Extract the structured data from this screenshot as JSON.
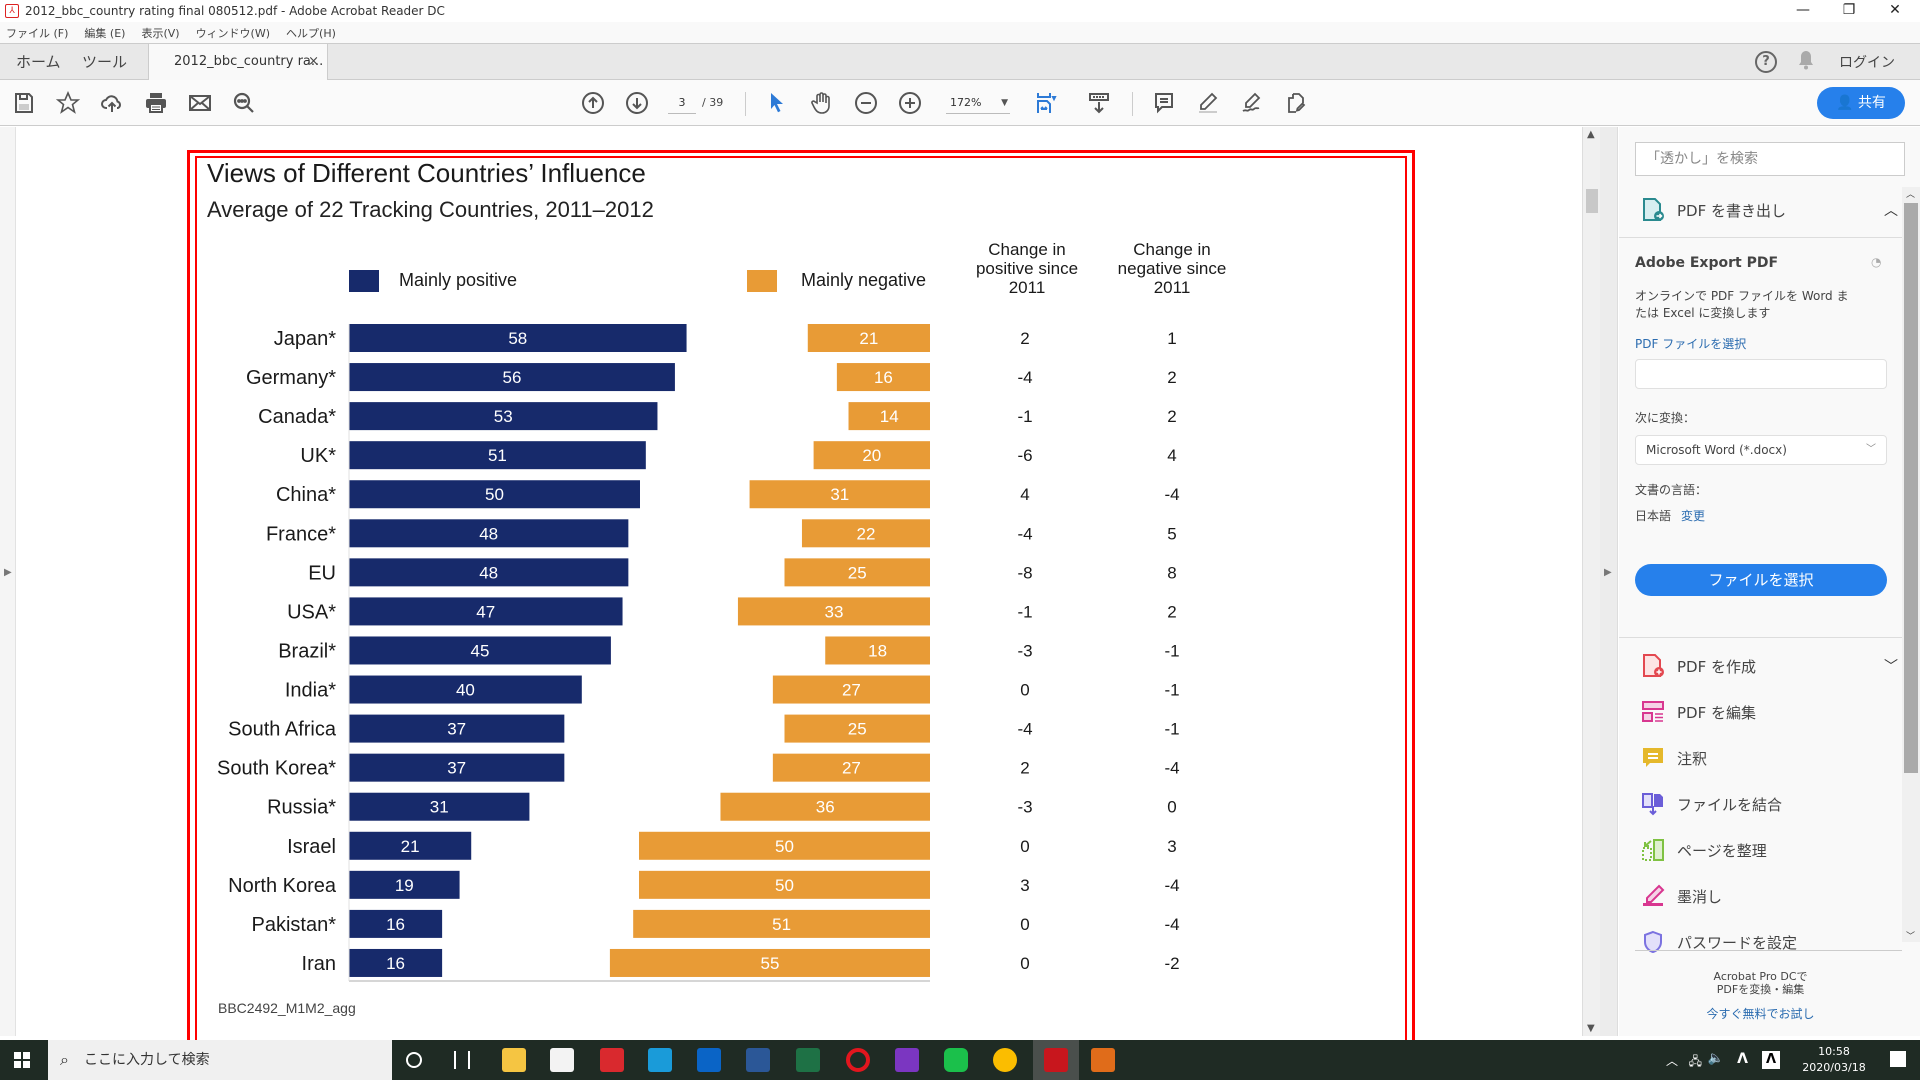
{
  "window": {
    "title": "2012_bbc_country rating final 080512.pdf - Adobe Acrobat Reader DC",
    "minimize": "—",
    "restore": "❐",
    "close": "✕"
  },
  "menu": [
    "ファイル (F)",
    "編集 (E)",
    "表示(V)",
    "ウィンドウ(W)",
    "ヘルプ(H)"
  ],
  "tabs": {
    "home": "ホーム",
    "tools": "ツール",
    "document": "2012_bbc_country ra...",
    "close": "×",
    "help": "?",
    "login": "ログイン"
  },
  "toolbar": {
    "icons": [
      "save-icon",
      "bookmark-star-icon",
      "cloud-upload-icon",
      "print-icon",
      "email-icon",
      "search-zoom-icon"
    ],
    "page_current": "3",
    "page_total": "/ 39",
    "zoom_level": "172%",
    "share_label": "共有"
  },
  "document": {
    "title": "Views of Different Countries’ Influence",
    "subtitle": "Average of 22 Tracking Countries, 2011–2012",
    "legend_positive": "Mainly positive",
    "legend_negative": "Mainly negative",
    "col_change_positive": [
      "Change in",
      "positive since",
      "2011"
    ],
    "col_change_negative": [
      "Change in",
      "negative since",
      "2011"
    ],
    "source": "BBC2492_M1M2_agg"
  },
  "chart_data": {
    "type": "bar",
    "title": "Views of Different Countries’ Influence",
    "subtitle": "Average of 22 Tracking Countries, 2011–2012",
    "categories": [
      "Japan*",
      "Germany*",
      "Canada*",
      "UK*",
      "China*",
      "France*",
      "EU",
      "USA*",
      "Brazil*",
      "India*",
      "South Africa",
      "South Korea*",
      "Russia*",
      "Israel",
      "North Korea",
      "Pakistan*",
      "Iran"
    ],
    "series": [
      {
        "name": "Mainly positive",
        "color": "#172a6b",
        "values": [
          58,
          56,
          53,
          51,
          50,
          48,
          48,
          47,
          45,
          40,
          37,
          37,
          31,
          21,
          19,
          16,
          16
        ]
      },
      {
        "name": "Mainly negative",
        "color": "#e89b36",
        "values": [
          21,
          16,
          14,
          20,
          31,
          22,
          25,
          33,
          18,
          27,
          25,
          27,
          36,
          50,
          50,
          51,
          55
        ]
      }
    ],
    "table_columns": [
      {
        "name": "Change in positive since 2011",
        "values": [
          2,
          -4,
          -1,
          -6,
          4,
          -4,
          -8,
          -1,
          -3,
          0,
          -4,
          2,
          -3,
          0,
          3,
          0,
          0
        ]
      },
      {
        "name": "Change in negative since 2011",
        "values": [
          1,
          2,
          2,
          4,
          -4,
          5,
          8,
          2,
          -1,
          -1,
          -1,
          -4,
          0,
          3,
          -4,
          -4,
          -2
        ]
      }
    ],
    "legend": "top",
    "xlabel": "",
    "ylabel": ""
  },
  "right_panel": {
    "search_placeholder": "「透かし」を検索",
    "export_header": "PDF を書き出し",
    "export_title": "Adobe Export PDF",
    "export_desc_1": "オンラインで PDF ファイルを Word ま",
    "export_desc_2": "たは Excel に変換します",
    "select_pdf_link": "PDF ファイルを選択",
    "convert_to_label": "次に変換：",
    "convert_to_value": "Microsoft Word (*.docx)",
    "doc_lang_label": "文書の言語：",
    "doc_lang_value": "日本語",
    "doc_lang_change": "変更",
    "select_file_button": "ファイルを選択",
    "tools": [
      {
        "label": "PDF を作成",
        "icon": "create-pdf-icon",
        "color": "#e34850"
      },
      {
        "label": "PDF を編集",
        "icon": "edit-pdf-icon",
        "color": "#d83790"
      },
      {
        "label": "注釈",
        "icon": "comment-icon",
        "color": "#e5b82b"
      },
      {
        "label": "ファイルを結合",
        "icon": "combine-files-icon",
        "color": "#6b5ed8"
      },
      {
        "label": "ページを整理",
        "icon": "organize-pages-icon",
        "color": "#7fc242"
      },
      {
        "label": "墨消し",
        "icon": "redact-icon",
        "color": "#d83790"
      },
      {
        "label": "パスワードを設定",
        "icon": "protect-shield-icon",
        "color": "#7b72e0"
      }
    ],
    "promo_1": "Acrobat Pro DCで",
    "promo_2": "PDFを変換・編集",
    "promo_link": "今すぐ無料でお試し"
  },
  "taskbar": {
    "search_placeholder": "ここに入力して検索",
    "time": "10:58",
    "date": "2020/03/18"
  }
}
